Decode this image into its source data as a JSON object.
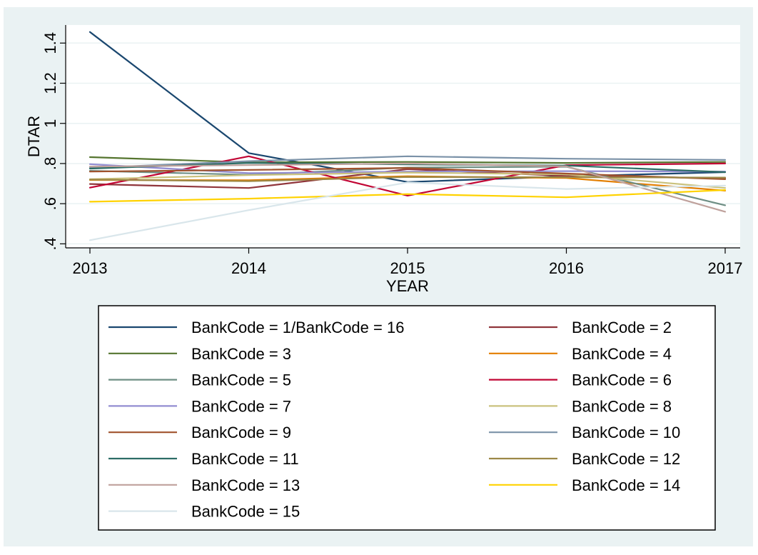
{
  "chart_data": {
    "type": "line",
    "title": "",
    "xlabel": "YEAR",
    "ylabel": "DTAR",
    "x": [
      2013,
      2014,
      2015,
      2016,
      2017
    ],
    "x_ticks": [
      "2013",
      "2014",
      "2015",
      "2016",
      "2017"
    ],
    "y_ticks": [
      {
        "value": 0.4,
        "label": ".4"
      },
      {
        "value": 0.6,
        "label": ".6"
      },
      {
        "value": 0.8,
        "label": ".8"
      },
      {
        "value": 1.0,
        "label": "1"
      },
      {
        "value": 1.2,
        "label": "1.2"
      },
      {
        "value": 1.4,
        "label": "1.4"
      }
    ],
    "ylim": [
      0.38,
      1.49
    ],
    "grid": "horizontal",
    "legend_position": "bottom",
    "legend_columns": 2,
    "series": [
      {
        "name": "BankCode = 1/BankCode = 16",
        "color": "#1a476f",
        "values": [
          1.455,
          0.852,
          0.708,
          0.736,
          0.757
        ]
      },
      {
        "name": "BankCode = 2",
        "color": "#90353b",
        "values": [
          0.698,
          0.678,
          0.772,
          0.738,
          0.727
        ]
      },
      {
        "name": "BankCode = 3",
        "color": "#55752f",
        "values": [
          0.832,
          0.806,
          0.808,
          0.803,
          0.808
        ]
      },
      {
        "name": "BankCode = 4",
        "color": "#e37e00",
        "values": [
          0.718,
          0.717,
          0.737,
          0.728,
          0.665
        ]
      },
      {
        "name": "BankCode = 5",
        "color": "#6e8e84",
        "values": [
          0.764,
          0.744,
          0.78,
          0.784,
          0.592
        ]
      },
      {
        "name": "BankCode = 6",
        "color": "#c10534",
        "values": [
          0.68,
          0.836,
          0.64,
          0.792,
          0.8
        ]
      },
      {
        "name": "BankCode = 7",
        "color": "#938dd2",
        "values": [
          0.797,
          0.752,
          0.76,
          0.762,
          0.76
        ]
      },
      {
        "name": "BankCode = 8",
        "color": "#cac27e",
        "values": [
          0.722,
          0.742,
          0.755,
          0.746,
          0.678
        ]
      },
      {
        "name": "BankCode = 9",
        "color": "#a0522d",
        "values": [
          0.76,
          0.768,
          0.778,
          0.75,
          0.722
        ]
      },
      {
        "name": "BankCode = 10",
        "color": "#7b92a8",
        "values": [
          0.778,
          0.812,
          0.836,
          0.824,
          0.818
        ]
      },
      {
        "name": "BankCode = 11",
        "color": "#2d6d66",
        "values": [
          0.775,
          0.803,
          0.796,
          0.79,
          0.757
        ]
      },
      {
        "name": "BankCode = 12",
        "color": "#9c8847",
        "values": [
          0.72,
          0.712,
          0.733,
          0.732,
          0.73
        ]
      },
      {
        "name": "BankCode = 13",
        "color": "#bfa19c",
        "values": [
          0.785,
          0.792,
          0.8,
          0.786,
          0.56
        ]
      },
      {
        "name": "BankCode = 14",
        "color": "#ffd200",
        "values": [
          0.61,
          0.625,
          0.648,
          0.632,
          0.668
        ]
      },
      {
        "name": "BankCode = 15",
        "color": "#d9e6eb",
        "values": [
          0.418,
          0.568,
          0.706,
          0.673,
          0.69
        ]
      }
    ]
  }
}
